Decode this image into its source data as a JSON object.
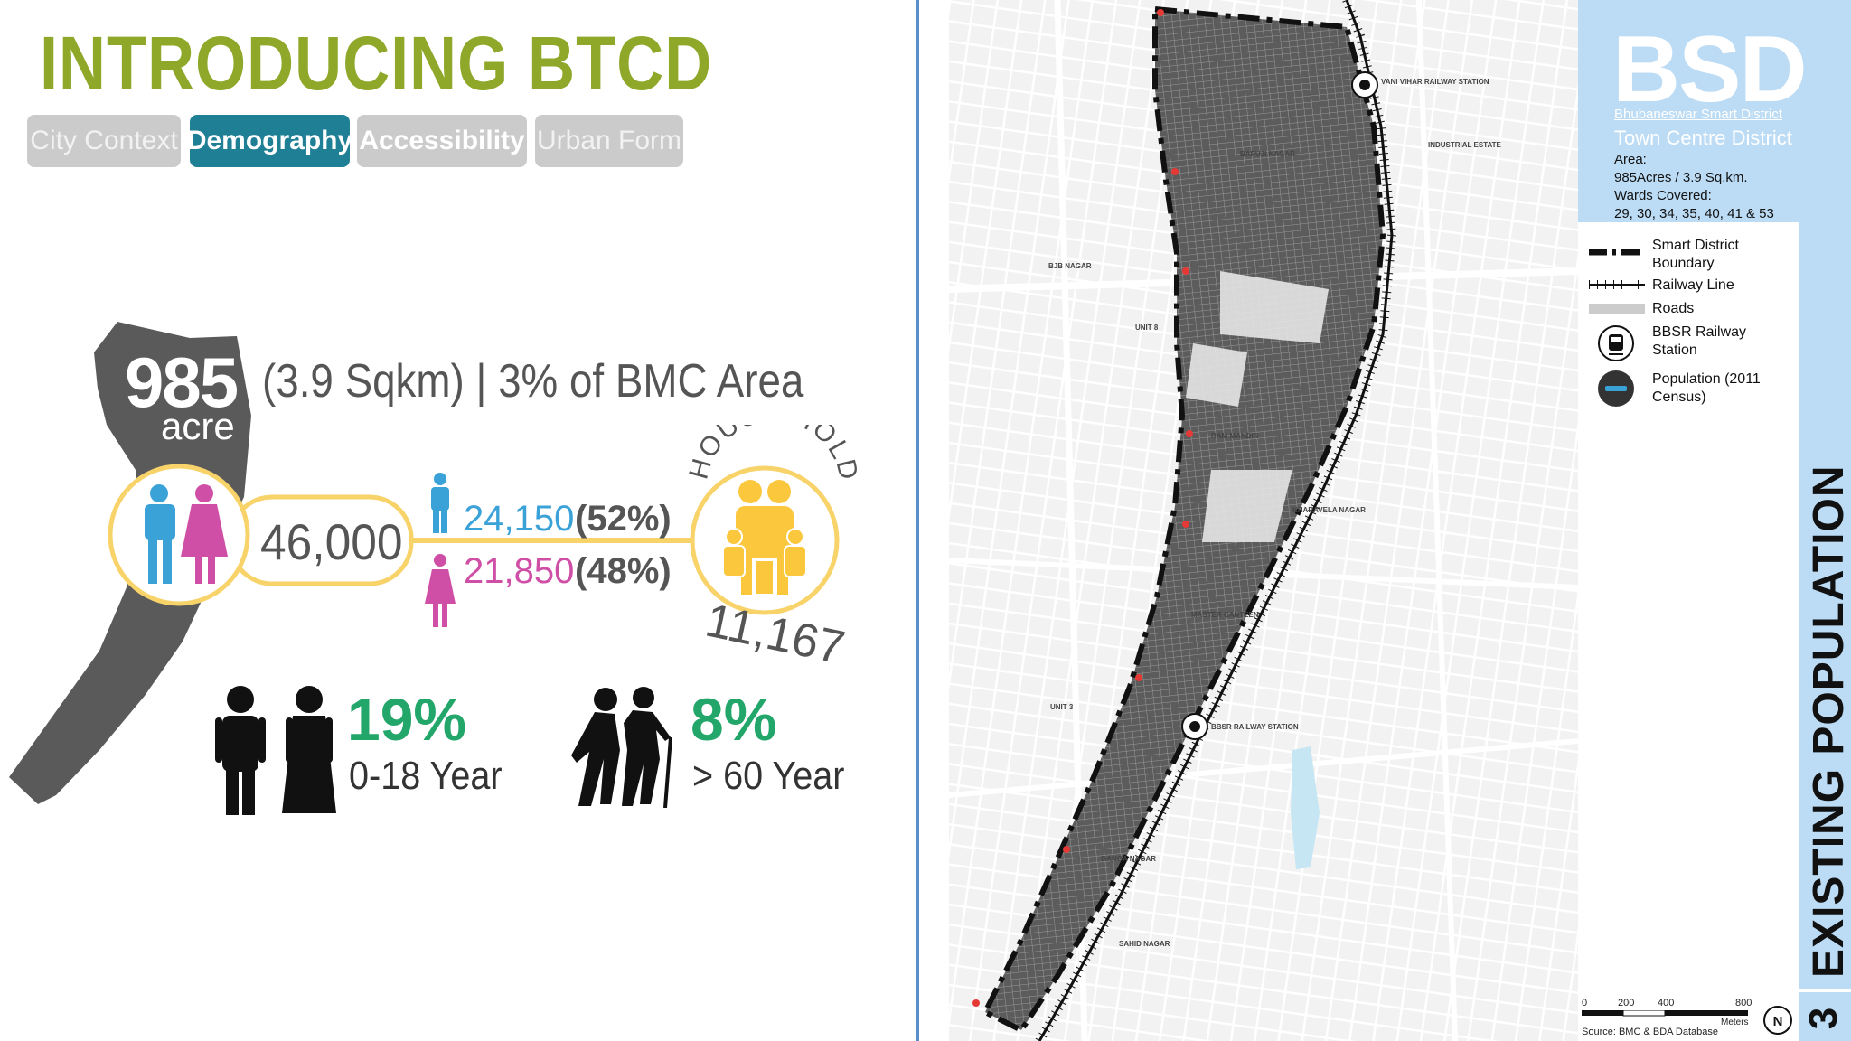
{
  "title": "INTRODUCING BTCD",
  "tabs": [
    {
      "label": "City Context"
    },
    {
      "label": "Demography"
    },
    {
      "label": "Accessibility"
    },
    {
      "label": "Urban Form"
    }
  ],
  "area": {
    "value": "985",
    "unit": "acre",
    "description": "(3.9 Sqkm) | 3% of BMC Area"
  },
  "population": {
    "total": "46,000",
    "male_count": "24,150",
    "male_pct": "(52%)",
    "female_count": "21,850",
    "female_pct": "(48%)"
  },
  "household": {
    "label": "HOUSE HOLD",
    "count": "11,167"
  },
  "age": {
    "youth_pct": "19%",
    "youth_label": "0-18 Year",
    "elder_pct": "8%",
    "elder_label": "> 60 Year"
  },
  "map": {
    "labels": [
      "RAM MANDIR",
      "BAPUJI NAGAR",
      "KHARAVELA NAGAR",
      "MASTER CANTEEN",
      "SAHID NAGAR",
      "GANGA NAGAR",
      "BBSR RAILWAY STATION",
      "VANI VIHAR RAILWAY STATION",
      "BJB NAGAR",
      "UNIT 3",
      "UNIT 8",
      "INDUSTRIAL ESTATE"
    ]
  },
  "sidebar": {
    "brand": "BSD",
    "brand_sub": "Bhubaneswar Smart District",
    "district": "Town Centre District",
    "area_label": "Area:",
    "area_value": "985Acres / 3.9 Sq.km.",
    "wards_label": "Wards Covered:",
    "wards_value": "29, 30, 34, 35, 40, 41 & 53",
    "legend": [
      {
        "label": "Smart District Boundary",
        "icon": "dashed-boundary-icon"
      },
      {
        "label": "Railway Line",
        "icon": "railway-line-icon"
      },
      {
        "label": "Roads",
        "icon": "roads-icon"
      },
      {
        "label": "BBSR Railway Station",
        "icon": "train-station-icon"
      },
      {
        "label": "Population (2011 Census)",
        "icon": "population-icon"
      }
    ],
    "scale_ticks": [
      "0",
      "200",
      "400",
      "800"
    ],
    "scale_unit": "Meters",
    "source": "Source: BMC & BDA Database",
    "section_title": "EXISTING POPULATION",
    "section_number": "3"
  },
  "colors": {
    "title": "#8fa82a",
    "tab_active": "#1f7f95",
    "tab_inactive": "#cbcbcb",
    "male": "#3ba2d8",
    "female": "#d04fa6",
    "household": "#fbc73d",
    "age_pct": "#22a66a",
    "sidebar_blue": "#bcdcf5"
  }
}
